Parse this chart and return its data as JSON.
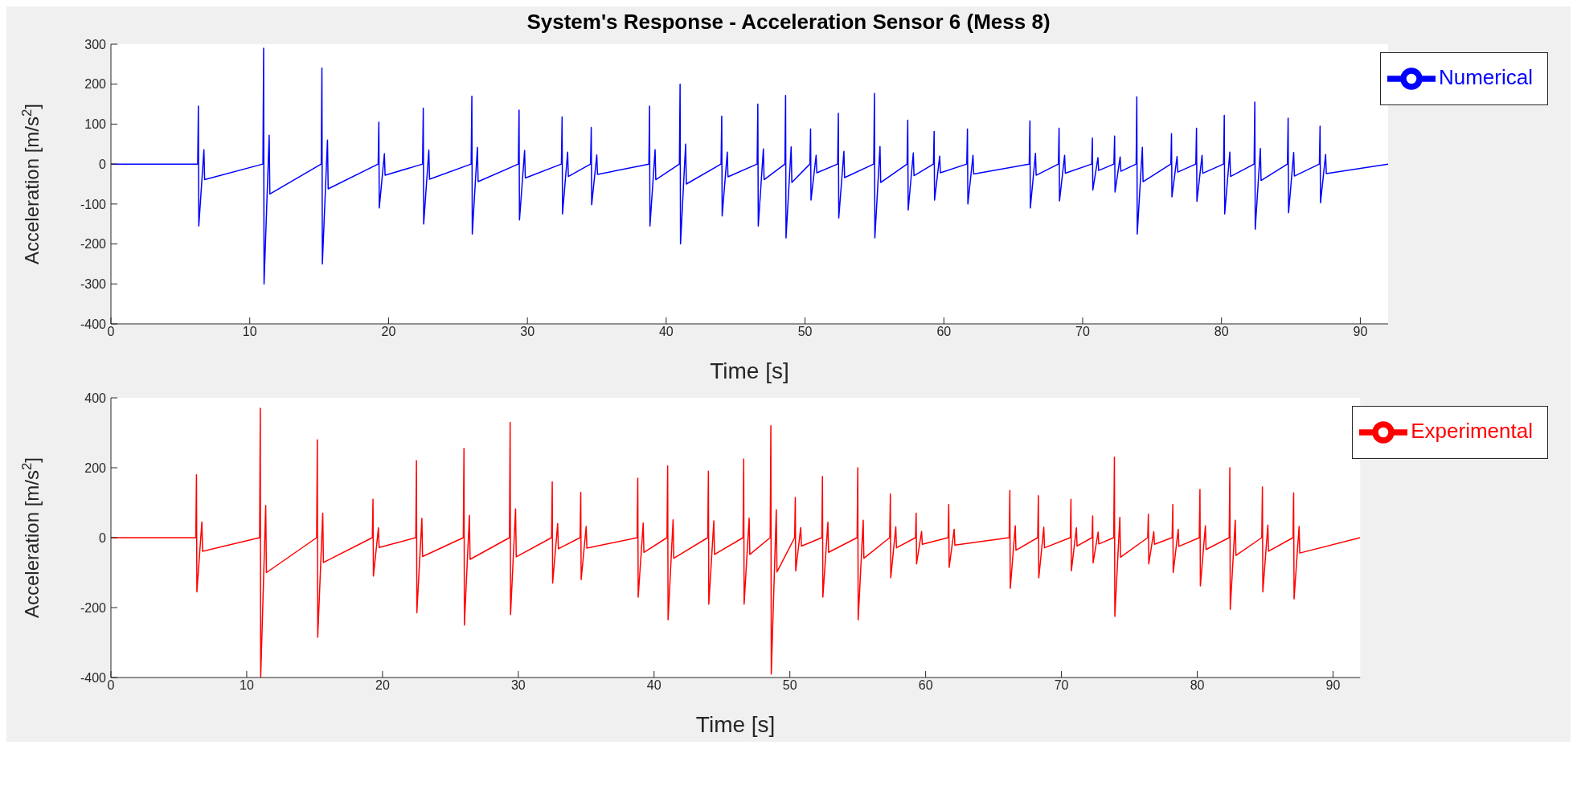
{
  "chart_data": [
    {
      "type": "line",
      "title": "System's Response - Acceleration Sensor 6 (Mess 8)",
      "xlabel": "Time [s]",
      "ylabel": "Acceleration [m/s$^{2}$]",
      "xlim": [
        0,
        92
      ],
      "xticks": [
        0,
        10,
        20,
        30,
        40,
        50,
        60,
        70,
        80,
        90
      ],
      "ylim": [
        -400,
        300
      ],
      "yticks": [
        -400,
        -300,
        -200,
        -100,
        0,
        100,
        200,
        300
      ],
      "legend": "top right",
      "series": [
        {
          "name": "Numerical",
          "color": "#0000ff",
          "x": [
            0,
            6.25,
            6.3,
            6.33,
            6.7,
            6.75,
            10.95,
            11,
            11.03,
            11.4,
            11.45,
            15.15,
            15.2,
            15.23,
            15.6,
            15.65,
            19.25,
            19.3,
            19.33,
            19.7,
            19.75,
            22.45,
            22.5,
            22.53,
            22.9,
            22.95,
            25.95,
            26,
            26.03,
            26.4,
            26.45,
            29.35,
            29.4,
            29.43,
            29.8,
            29.85,
            32.45,
            32.5,
            32.53,
            32.9,
            32.95,
            34.55,
            34.6,
            34.63,
            35,
            35.05,
            38.75,
            38.8,
            38.83,
            39.2,
            39.25,
            40.95,
            41,
            41.03,
            41.4,
            41.45,
            43.95,
            44,
            44.03,
            44.4,
            44.45,
            46.55,
            46.6,
            46.63,
            47,
            47.05,
            48.55,
            48.6,
            48.63,
            49,
            49.05,
            50.35,
            50.4,
            50.43,
            50.8,
            50.85,
            52.35,
            52.4,
            52.43,
            52.8,
            52.85,
            54.95,
            55,
            55.03,
            55.4,
            55.45,
            57.35,
            57.4,
            57.43,
            57.8,
            57.85,
            59.25,
            59.3,
            59.33,
            59.7,
            59.75,
            61.65,
            61.7,
            61.73,
            62.1,
            62.15,
            66.15,
            66.2,
            66.23,
            66.6,
            66.65,
            68.25,
            68.3,
            68.33,
            68.7,
            68.75,
            70.65,
            70.7,
            70.73,
            71.1,
            71.15,
            72.25,
            72.3,
            72.33,
            72.7,
            72.75,
            73.85,
            73.9,
            73.93,
            74.3,
            74.35,
            76.35,
            76.4,
            76.43,
            76.8,
            76.85,
            78.15,
            78.2,
            78.23,
            78.6,
            78.65,
            80.15,
            80.2,
            80.23,
            80.6,
            80.65,
            82.35,
            82.4,
            82.43,
            82.8,
            82.85,
            84.75,
            84.8,
            84.83,
            85.2,
            85.25,
            87.05,
            87.1,
            87.13,
            87.5,
            87.55,
            92
          ],
          "values": [
            0,
            0,
            145,
            -155,
            36,
            -39,
            0,
            290,
            -300,
            72,
            -75,
            0,
            240,
            -250,
            60,
            -62,
            0,
            105,
            -110,
            26,
            -28,
            0,
            140,
            -150,
            35,
            -38,
            0,
            170,
            -175,
            42,
            -44,
            0,
            135,
            -140,
            34,
            -35,
            0,
            118,
            -125,
            30,
            -31,
            0,
            92,
            -102,
            23,
            -26,
            0,
            145,
            -155,
            36,
            -39,
            0,
            200,
            -200,
            50,
            -50,
            0,
            120,
            -130,
            30,
            -32,
            0,
            150,
            -155,
            38,
            -39,
            0,
            172,
            -185,
            43,
            -46,
            0,
            88,
            -90,
            22,
            -22,
            0,
            127,
            -135,
            32,
            -34,
            0,
            177,
            -185,
            44,
            -46,
            0,
            110,
            -115,
            28,
            -29,
            0,
            82,
            -90,
            20,
            -22,
            0,
            88,
            -100,
            22,
            -25,
            0,
            108,
            -110,
            27,
            -28,
            0,
            90,
            -92,
            22,
            -23,
            0,
            65,
            -65,
            16,
            -16,
            0,
            70,
            -70,
            18,
            -18,
            0,
            168,
            -175,
            42,
            -44,
            0,
            76,
            -82,
            19,
            -20,
            0,
            90,
            -93,
            22,
            -23,
            0,
            122,
            -125,
            30,
            -31,
            0,
            155,
            -163,
            39,
            -41,
            0,
            115,
            -122,
            29,
            -30,
            0,
            95,
            -97,
            24,
            -24,
            0
          ]
        }
      ]
    },
    {
      "type": "line",
      "xlabel": "Time [s]",
      "ylabel": "Acceleration [m/s$^{2}$]",
      "xlim": [
        0,
        92
      ],
      "xticks": [
        0,
        10,
        20,
        30,
        40,
        50,
        60,
        70,
        80,
        90
      ],
      "ylim": [
        -400,
        400
      ],
      "yticks": [
        -400,
        -200,
        0,
        200,
        400
      ],
      "legend": "top right",
      "series": [
        {
          "name": "Experimental",
          "color": "#ff0000",
          "x": [
            0,
            6.25,
            6.3,
            6.33,
            6.7,
            6.75,
            10.95,
            11,
            11.03,
            11.4,
            11.45,
            15.15,
            15.2,
            15.23,
            15.6,
            15.65,
            19.25,
            19.3,
            19.33,
            19.7,
            19.75,
            22.45,
            22.5,
            22.53,
            22.9,
            22.95,
            25.95,
            26,
            26.03,
            26.4,
            26.45,
            29.35,
            29.4,
            29.43,
            29.8,
            29.85,
            32.45,
            32.5,
            32.53,
            32.9,
            32.95,
            34.55,
            34.6,
            34.63,
            35,
            35.05,
            38.75,
            38.8,
            38.83,
            39.2,
            39.25,
            40.95,
            41,
            41.03,
            41.4,
            41.45,
            43.95,
            44,
            44.03,
            44.4,
            44.45,
            46.55,
            46.6,
            46.63,
            47,
            47.05,
            48.55,
            48.6,
            48.63,
            49,
            49.05,
            50.35,
            50.4,
            50.43,
            50.8,
            50.85,
            52.35,
            52.4,
            52.43,
            52.8,
            52.85,
            54.95,
            55,
            55.03,
            55.4,
            55.45,
            57.35,
            57.4,
            57.43,
            57.8,
            57.85,
            59.25,
            59.3,
            59.33,
            59.7,
            59.75,
            61.65,
            61.7,
            61.73,
            62.1,
            62.15,
            66.15,
            66.2,
            66.23,
            66.6,
            66.65,
            68.25,
            68.3,
            68.33,
            68.7,
            68.75,
            70.65,
            70.7,
            70.73,
            71.1,
            71.15,
            72.25,
            72.3,
            72.33,
            72.7,
            72.75,
            73.85,
            73.9,
            73.93,
            74.3,
            74.35,
            76.35,
            76.4,
            76.43,
            76.8,
            76.85,
            78.15,
            78.2,
            78.23,
            78.6,
            78.65,
            80.15,
            80.2,
            80.23,
            80.6,
            80.65,
            82.35,
            82.4,
            82.43,
            82.8,
            82.85,
            84.75,
            84.8,
            84.83,
            85.2,
            85.25,
            87.05,
            87.1,
            87.13,
            87.5,
            87.55,
            92
          ],
          "values": [
            0,
            0,
            180,
            -155,
            45,
            -39,
            0,
            370,
            -400,
            92,
            -100,
            0,
            280,
            -285,
            70,
            -71,
            0,
            110,
            -110,
            28,
            -28,
            0,
            220,
            -215,
            55,
            -54,
            0,
            255,
            -250,
            64,
            -62,
            0,
            330,
            -220,
            82,
            -55,
            0,
            160,
            -130,
            40,
            -32,
            0,
            130,
            -120,
            32,
            -30,
            0,
            170,
            -170,
            42,
            -42,
            0,
            205,
            -235,
            51,
            -59,
            0,
            190,
            -190,
            48,
            -48,
            0,
            225,
            -190,
            56,
            -48,
            0,
            320,
            -390,
            80,
            -98,
            0,
            115,
            -95,
            29,
            -24,
            0,
            175,
            -170,
            44,
            -42,
            0,
            200,
            -235,
            50,
            -59,
            0,
            125,
            -115,
            31,
            -29,
            0,
            70,
            -75,
            18,
            -19,
            0,
            95,
            -85,
            24,
            -21,
            0,
            135,
            -145,
            34,
            -36,
            0,
            120,
            -115,
            30,
            -29,
            0,
            110,
            -95,
            28,
            -24,
            0,
            62,
            -72,
            16,
            -18,
            0,
            230,
            -225,
            58,
            -56,
            0,
            67,
            -75,
            17,
            -19,
            0,
            95,
            -100,
            24,
            -25,
            0,
            138,
            -138,
            34,
            -34,
            0,
            200,
            -205,
            50,
            -51,
            0,
            145,
            -155,
            36,
            -39,
            0,
            128,
            -175,
            32,
            -44,
            0
          ]
        }
      ]
    }
  ]
}
